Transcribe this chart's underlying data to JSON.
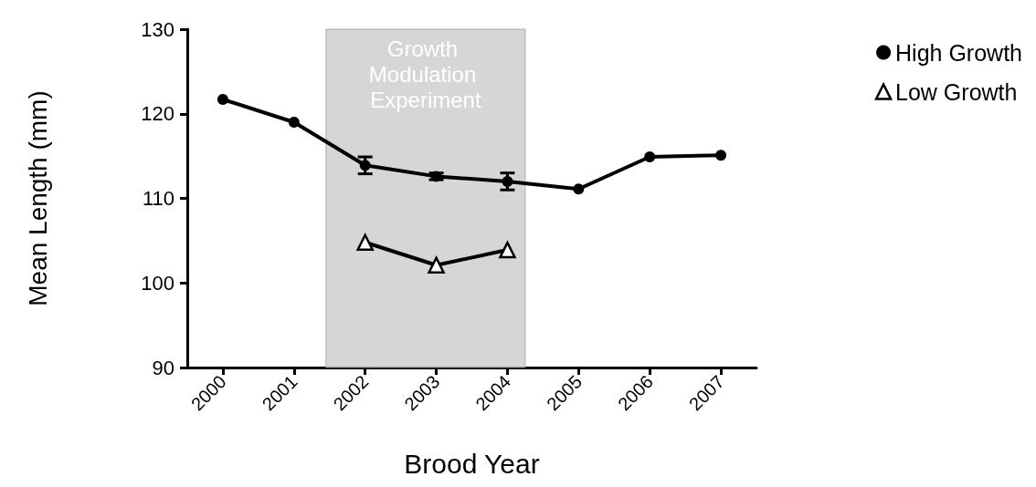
{
  "chart_data": {
    "type": "line",
    "xlabel": "Brood Year",
    "ylabel": "Mean Length (mm)",
    "xlim": [
      1999.5,
      2007.5
    ],
    "xticks": [
      2000,
      2001,
      2002,
      2003,
      2004,
      2005,
      2006,
      2007
    ],
    "ylim": [
      90,
      130
    ],
    "yticks": [
      90,
      100,
      110,
      120,
      130
    ],
    "series": [
      {
        "name": "High Growth",
        "color": "#000000",
        "marker": "circle",
        "x": [
          2000,
          2001,
          2002,
          2003,
          2004,
          2005,
          2006,
          2007
        ],
        "values": [
          121.7,
          119.0,
          113.9,
          112.6,
          112.0,
          111.1,
          114.9,
          115.1
        ],
        "errors": [
          null,
          null,
          1.0,
          0.4,
          1.0,
          null,
          null,
          null
        ]
      },
      {
        "name": "Low Growth",
        "color": "#000000",
        "marker": "triangle",
        "x": [
          2002,
          2003,
          2004
        ],
        "values": [
          104.8,
          102.1,
          103.9
        ]
      }
    ],
    "bands": [
      {
        "axis": "x",
        "from": 2001.45,
        "to": 2004.25,
        "label": "Growth Modulation Experiment",
        "color": "#c8c8c8"
      }
    ],
    "grid": false,
    "legend": "top right",
    "line_style": "solid"
  }
}
